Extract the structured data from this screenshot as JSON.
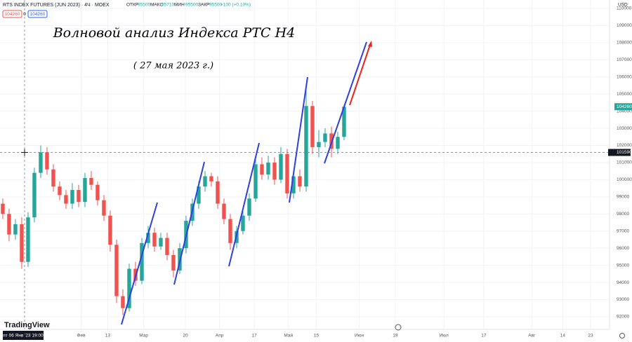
{
  "chart_data": {
    "type": "candlestick",
    "title": "RTS INDEX FUTURES (JUN 2023) · 4Ч · MOEX",
    "annotation_title": "Волновой анализ Индекса РТС Н4",
    "annotation_date": "( 27 мая 2023 г.)",
    "ohlc_header": {
      "labels": [
        "ОТКР",
        "МАКС",
        "МИН",
        "ЗАКР"
      ],
      "values": [
        95500,
        95710,
        95500,
        95500
      ],
      "change": "+100 (+0,10%)"
    },
    "currency": "USD",
    "up_color": "#26a69a",
    "down_color": "#ef5350",
    "x": [
      0,
      1,
      2,
      3,
      4,
      5,
      6,
      7,
      8,
      9,
      10,
      11,
      12,
      13,
      14,
      15,
      16,
      17,
      18,
      19,
      20,
      21,
      22,
      23,
      24,
      25,
      26,
      27,
      28,
      29,
      30,
      31,
      32,
      33,
      34,
      35,
      36,
      37,
      38,
      39,
      40,
      41,
      42,
      43,
      44,
      45,
      46,
      47,
      48,
      49,
      50,
      51,
      52,
      53,
      54
    ],
    "open": [
      98600,
      98000,
      96800,
      97400,
      95200,
      97800,
      100400,
      101600,
      100600,
      99600,
      99100,
      98600,
      99400,
      98700,
      100100,
      99700,
      98800,
      97900,
      96200,
      93200,
      92500,
      94800,
      94100,
      96300,
      96900,
      96100,
      96600,
      95600,
      94700,
      96000,
      97600,
      98600,
      99600,
      100200,
      99900,
      98600,
      97700,
      96300,
      97000,
      97900,
      98900,
      100900,
      100300,
      101000,
      100000,
      101500,
      99200,
      100200,
      99600,
      104300,
      101900,
      102200,
      102700,
      101800,
      102500
    ],
    "high": [
      98900,
      98300,
      97700,
      97800,
      98100,
      100700,
      102000,
      101900,
      100900,
      99900,
      99400,
      99800,
      99700,
      100400,
      100500,
      99900,
      99100,
      98200,
      96500,
      93600,
      95100,
      95200,
      96600,
      97300,
      97200,
      96900,
      96900,
      95900,
      96300,
      97900,
      98900,
      99900,
      100500,
      100400,
      100200,
      98900,
      98000,
      97300,
      98200,
      99200,
      101200,
      101300,
      101400,
      101300,
      101900,
      101800,
      100500,
      100600,
      105300,
      104600,
      102900,
      103000,
      103100,
      102800,
      104400
    ],
    "low": [
      97700,
      96400,
      96500,
      94800,
      94900,
      97500,
      100100,
      100300,
      99300,
      98800,
      98300,
      98300,
      98400,
      98400,
      99400,
      98500,
      97600,
      95800,
      92800,
      92100,
      92300,
      93800,
      93900,
      96000,
      95800,
      95900,
      95300,
      94300,
      94500,
      95700,
      97300,
      98300,
      99300,
      99600,
      98300,
      97400,
      95900,
      96000,
      96800,
      97600,
      98700,
      100000,
      100000,
      99700,
      99800,
      98900,
      98900,
      99300,
      99300,
      101500,
      101300,
      101900,
      101300,
      101500,
      102300
    ],
    "close": [
      98000,
      96800,
      97400,
      95200,
      97800,
      100400,
      101600,
      100600,
      99600,
      99100,
      98600,
      99400,
      98700,
      100100,
      99700,
      98800,
      97900,
      96200,
      93200,
      92500,
      94800,
      94100,
      96300,
      96900,
      96100,
      96600,
      95600,
      94700,
      96000,
      97600,
      98600,
      99600,
      100200,
      99900,
      98600,
      97700,
      96300,
      97000,
      97900,
      98900,
      100900,
      100300,
      101000,
      100000,
      101500,
      99200,
      100200,
      99600,
      104300,
      101900,
      102200,
      102700,
      101800,
      102500,
      104260
    ],
    "xlim": [
      -0.44,
      96
    ],
    "xticks": [
      {
        "value": 12.4,
        "label": "Фев"
      },
      {
        "value": 16.6,
        "label": "13"
      },
      {
        "value": 22.3,
        "label": "Мар"
      },
      {
        "value": 28.9,
        "label": "20"
      },
      {
        "value": 34.3,
        "label": "Апр"
      },
      {
        "value": 39.8,
        "label": "17"
      },
      {
        "value": 45.2,
        "label": "Май"
      },
      {
        "value": 49.6,
        "label": "15"
      },
      {
        "value": 56.4,
        "label": "Июн"
      },
      {
        "value": 62.1,
        "label": "19"
      },
      {
        "value": 69.8,
        "label": "Июл"
      },
      {
        "value": 76.1,
        "label": "17"
      },
      {
        "value": 83.7,
        "label": "Авг"
      },
      {
        "value": 88.6,
        "label": "14"
      },
      {
        "value": 93,
        "label": "23"
      }
    ],
    "ylim": [
      91260,
      110490
    ],
    "yticks": [
      92000,
      93000,
      94000,
      95000,
      96000,
      97000,
      98000,
      99000,
      100000,
      101000,
      102000,
      103000,
      104000,
      105000,
      106000,
      107000,
      108000,
      109000,
      110000
    ],
    "grid": true,
    "last_price": 104260,
    "crosshair_price": 101590,
    "crosshair_date": "пт 06 Янв '23 19:00"
  },
  "ui": {
    "sell_price": 104260,
    "spread": 0,
    "buy_price": 104260,
    "logo": "TradingView"
  }
}
